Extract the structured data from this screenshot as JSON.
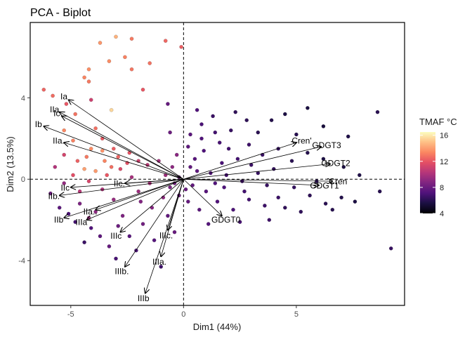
{
  "chart_data": {
    "type": "scatter",
    "title": "PCA - Biplot",
    "xlabel": "Dim1 (44%)",
    "ylabel": "Dim2 (13.5%)",
    "xlim": [
      -6.8,
      9.8
    ],
    "ylim": [
      -6.2,
      7.7
    ],
    "xticks": [
      -5,
      0,
      5
    ],
    "yticks": [
      -4,
      0,
      4
    ],
    "reference_lines": {
      "x": 0,
      "y": 0,
      "style": "dashed"
    },
    "legend": {
      "title": "TMAF °C",
      "placement": "right",
      "min": 4,
      "max": 16.5,
      "ticks": [
        4,
        8,
        12,
        16
      ]
    },
    "vectors": [
      {
        "label": "Ia",
        "x": -5.1,
        "y": 3.9
      },
      {
        "label": "IIa",
        "x": -5.5,
        "y": 3.3
      },
      {
        "label": "Ic",
        "x": -5.4,
        "y": 3.1
      },
      {
        "label": "Ib",
        "x": -6.2,
        "y": 2.6
      },
      {
        "label": "IIa.",
        "x": -5.3,
        "y": 1.8
      },
      {
        "label": "IIc",
        "x": -5.0,
        "y": -0.4
      },
      {
        "label": "IIb.",
        "x": -5.5,
        "y": -0.8
      },
      {
        "label": "IIb",
        "x": -5.3,
        "y": -1.9
      },
      {
        "label": "IIIa",
        "x": -4.3,
        "y": -2.0
      },
      {
        "label": "IIa..",
        "x": -3.9,
        "y": -1.5
      },
      {
        "label": "IIc.",
        "x": -2.6,
        "y": -0.2
      },
      {
        "label": "IIIc",
        "x": -2.8,
        "y": -2.6
      },
      {
        "label": "IIIb.",
        "x": -2.6,
        "y": -4.3
      },
      {
        "label": "IIIa.",
        "x": -1.0,
        "y": -3.8
      },
      {
        "label": "IIIc.",
        "x": -0.7,
        "y": -2.5
      },
      {
        "label": "IIIb",
        "x": -1.7,
        "y": -5.6
      },
      {
        "label": "GDGT0",
        "x": 1.7,
        "y": -1.8
      },
      {
        "label": "Cren'",
        "x": 5.0,
        "y": 1.8
      },
      {
        "label": "GDGT3",
        "x": 6.1,
        "y": 1.6
      },
      {
        "label": "GDGT2",
        "x": 6.5,
        "y": 0.75
      },
      {
        "label": "Cren",
        "x": 6.6,
        "y": -0.1
      },
      {
        "label": "GDGT1",
        "x": 6.0,
        "y": -0.3
      }
    ],
    "points": [
      {
        "x": -3.0,
        "y": 7.0,
        "t": 14.5
      },
      {
        "x": -3.7,
        "y": 6.7,
        "t": 13.8
      },
      {
        "x": -2.3,
        "y": 6.9,
        "t": 13.0
      },
      {
        "x": -0.8,
        "y": 6.8,
        "t": 12.5
      },
      {
        "x": -0.1,
        "y": 6.5,
        "t": 12.2
      },
      {
        "x": -2.6,
        "y": 6.0,
        "t": 13.2
      },
      {
        "x": -3.3,
        "y": 5.8,
        "t": 13.5
      },
      {
        "x": -1.5,
        "y": 5.7,
        "t": 12.8
      },
      {
        "x": -4.2,
        "y": 5.4,
        "t": 13.6
      },
      {
        "x": -2.3,
        "y": 5.4,
        "t": 12.9
      },
      {
        "x": -4.4,
        "y": 5.0,
        "t": 13.3
      },
      {
        "x": -4.2,
        "y": 4.8,
        "t": 13.0
      },
      {
        "x": -1.8,
        "y": 4.4,
        "t": 12.0
      },
      {
        "x": -6.2,
        "y": 4.4,
        "t": 12.4
      },
      {
        "x": -5.8,
        "y": 4.1,
        "t": 12.6
      },
      {
        "x": -3.2,
        "y": 3.4,
        "t": 15.5
      },
      {
        "x": -4.1,
        "y": 3.9,
        "t": 11.0
      },
      {
        "x": -5.2,
        "y": 3.7,
        "t": 12.0
      },
      {
        "x": -4.8,
        "y": 3.2,
        "t": 12.8
      },
      {
        "x": -5.3,
        "y": 2.4,
        "t": 13.4
      },
      {
        "x": -3.9,
        "y": 2.5,
        "t": 12.7
      },
      {
        "x": -3.6,
        "y": 2.0,
        "t": 12.1
      },
      {
        "x": -4.9,
        "y": 1.9,
        "t": 13.2
      },
      {
        "x": -4.1,
        "y": 1.5,
        "t": 13.5
      },
      {
        "x": -3.6,
        "y": 1.4,
        "t": 13.7
      },
      {
        "x": -4.3,
        "y": 1.1,
        "t": 13.0
      },
      {
        "x": -3.5,
        "y": 0.9,
        "t": 13.3
      },
      {
        "x": -4.4,
        "y": 0.5,
        "t": 14.0
      },
      {
        "x": -3.9,
        "y": 0.4,
        "t": 13.9
      },
      {
        "x": -2.9,
        "y": 1.1,
        "t": 12.4
      },
      {
        "x": -3.2,
        "y": 0.6,
        "t": 12.7
      },
      {
        "x": -2.5,
        "y": 0.8,
        "t": 11.8
      },
      {
        "x": -4.7,
        "y": 0.9,
        "t": 12.3
      },
      {
        "x": -4.9,
        "y": 0.2,
        "t": 11.7
      },
      {
        "x": -5.3,
        "y": 1.2,
        "t": 11.2
      },
      {
        "x": -4.2,
        "y": -0.1,
        "t": 11.3
      },
      {
        "x": -3.4,
        "y": 0.2,
        "t": 12.0
      },
      {
        "x": -2.8,
        "y": 0.5,
        "t": 11.5
      },
      {
        "x": -3.1,
        "y": 1.5,
        "t": 12.2
      },
      {
        "x": -2.4,
        "y": 1.3,
        "t": 11.9
      },
      {
        "x": -2.0,
        "y": 0.9,
        "t": 11.0
      },
      {
        "x": -1.6,
        "y": 0.7,
        "t": 10.5
      },
      {
        "x": -5.9,
        "y": -0.7,
        "t": 8.0
      },
      {
        "x": -5.5,
        "y": -1.4,
        "t": 7.5
      },
      {
        "x": -5.1,
        "y": -1.7,
        "t": 7.0
      },
      {
        "x": -4.6,
        "y": -1.2,
        "t": 8.5
      },
      {
        "x": -4.8,
        "y": -2.1,
        "t": 6.8
      },
      {
        "x": -4.1,
        "y": -2.4,
        "t": 7.2
      },
      {
        "x": -3.7,
        "y": -2.8,
        "t": 7.6
      },
      {
        "x": -4.4,
        "y": -3.1,
        "t": 6.5
      },
      {
        "x": -3.3,
        "y": -3.3,
        "t": 7.8
      },
      {
        "x": -3.9,
        "y": -1.6,
        "t": 9.0
      },
      {
        "x": -3.1,
        "y": -1.0,
        "t": 9.3
      },
      {
        "x": -2.7,
        "y": -1.8,
        "t": 8.6
      },
      {
        "x": -2.4,
        "y": -2.8,
        "t": 7.4
      },
      {
        "x": -3.0,
        "y": -3.9,
        "t": 6.9
      },
      {
        "x": -2.1,
        "y": -3.5,
        "t": 7.1
      },
      {
        "x": -1.8,
        "y": -2.2,
        "t": 8.2
      },
      {
        "x": -1.3,
        "y": -3.0,
        "t": 7.3
      },
      {
        "x": -1.0,
        "y": -4.3,
        "t": 6.6
      },
      {
        "x": -0.4,
        "y": -2.6,
        "t": 7.9
      },
      {
        "x": -1.4,
        "y": -1.4,
        "t": 8.8
      },
      {
        "x": -0.9,
        "y": -0.9,
        "t": 9.1
      },
      {
        "x": -2.0,
        "y": -0.6,
        "t": 9.5
      },
      {
        "x": -1.5,
        "y": -0.2,
        "t": 10.0
      },
      {
        "x": -0.8,
        "y": 0.2,
        "t": 9.6
      },
      {
        "x": -0.5,
        "y": 0.6,
        "t": 9.0
      },
      {
        "x": -1.1,
        "y": 0.9,
        "t": 9.7
      },
      {
        "x": -0.3,
        "y": 1.2,
        "t": 8.9
      },
      {
        "x": -0.6,
        "y": -0.4,
        "t": 8.4
      },
      {
        "x": -0.2,
        "y": -0.8,
        "t": 8.1
      },
      {
        "x": -0.7,
        "y": -1.8,
        "t": 7.7
      },
      {
        "x": -1.9,
        "y": -1.1,
        "t": 8.7
      },
      {
        "x": -2.3,
        "y": 0.1,
        "t": 9.8
      },
      {
        "x": -5.3,
        "y": -0.2,
        "t": 9.2
      },
      {
        "x": -5.7,
        "y": 0.6,
        "t": 10.2
      },
      {
        "x": -4.6,
        "y": -0.6,
        "t": 10.4
      },
      {
        "x": -3.6,
        "y": -0.5,
        "t": 10.1
      },
      {
        "x": -2.9,
        "y": -2.3,
        "t": 8.0
      },
      {
        "x": -4.2,
        "y": -1.9,
        "t": 9.4
      },
      {
        "x": 0.3,
        "y": 2.2,
        "t": 7.5
      },
      {
        "x": 0.8,
        "y": 2.7,
        "t": 7.0
      },
      {
        "x": 1.3,
        "y": 3.1,
        "t": 6.5
      },
      {
        "x": 0.6,
        "y": 3.4,
        "t": 7.2
      },
      {
        "x": -0.6,
        "y": 2.3,
        "t": 8.0
      },
      {
        "x": -0.7,
        "y": 3.7,
        "t": 7.8
      },
      {
        "x": 0.2,
        "y": 1.6,
        "t": 7.6
      },
      {
        "x": 0.9,
        "y": 1.4,
        "t": 7.1
      },
      {
        "x": 1.6,
        "y": 1.8,
        "t": 6.9
      },
      {
        "x": 2.1,
        "y": 2.4,
        "t": 6.4
      },
      {
        "x": 2.8,
        "y": 2.9,
        "t": 6.1
      },
      {
        "x": 2.3,
        "y": 3.3,
        "t": 6.2
      },
      {
        "x": 3.3,
        "y": 2.3,
        "t": 6.0
      },
      {
        "x": 3.9,
        "y": 2.9,
        "t": 5.8
      },
      {
        "x": 4.5,
        "y": 3.2,
        "t": 5.6
      },
      {
        "x": 5.5,
        "y": 3.5,
        "t": 5.5
      },
      {
        "x": 8.6,
        "y": 3.3,
        "t": 6.0
      },
      {
        "x": 7.3,
        "y": 2.1,
        "t": 5.7
      },
      {
        "x": 6.2,
        "y": 2.6,
        "t": 5.4
      },
      {
        "x": 5.0,
        "y": 2.2,
        "t": 5.9
      },
      {
        "x": 4.2,
        "y": 1.5,
        "t": 6.3
      },
      {
        "x": 3.5,
        "y": 1.2,
        "t": 6.5
      },
      {
        "x": 2.9,
        "y": 1.7,
        "t": 6.6
      },
      {
        "x": 2.4,
        "y": 1.0,
        "t": 6.8
      },
      {
        "x": 1.7,
        "y": 0.8,
        "t": 7.0
      },
      {
        "x": 1.2,
        "y": 0.3,
        "t": 7.3
      },
      {
        "x": 0.6,
        "y": 0.4,
        "t": 7.6
      },
      {
        "x": 0.4,
        "y": -0.3,
        "t": 7.7
      },
      {
        "x": 1.0,
        "y": -0.6,
        "t": 7.4
      },
      {
        "x": 1.8,
        "y": -0.4,
        "t": 7.1
      },
      {
        "x": 2.6,
        "y": -0.1,
        "t": 6.7
      },
      {
        "x": 3.3,
        "y": 0.3,
        "t": 6.4
      },
      {
        "x": 4.0,
        "y": 0.5,
        "t": 6.2
      },
      {
        "x": 4.8,
        "y": 0.9,
        "t": 6.0
      },
      {
        "x": 5.5,
        "y": 1.3,
        "t": 5.8
      },
      {
        "x": 6.2,
        "y": 1.0,
        "t": 5.6
      },
      {
        "x": 7.1,
        "y": 0.6,
        "t": 5.5
      },
      {
        "x": 7.8,
        "y": 0.2,
        "t": 5.7
      },
      {
        "x": 8.7,
        "y": -0.6,
        "t": 5.9
      },
      {
        "x": 7.0,
        "y": -0.9,
        "t": 5.8
      },
      {
        "x": 6.3,
        "y": -1.2,
        "t": 6.0
      },
      {
        "x": 5.6,
        "y": -0.8,
        "t": 6.1
      },
      {
        "x": 4.9,
        "y": -0.4,
        "t": 6.3
      },
      {
        "x": 4.2,
        "y": -0.9,
        "t": 6.5
      },
      {
        "x": 3.6,
        "y": -1.3,
        "t": 6.6
      },
      {
        "x": 2.9,
        "y": -1.0,
        "t": 6.8
      },
      {
        "x": 2.2,
        "y": -1.5,
        "t": 7.0
      },
      {
        "x": 1.5,
        "y": -1.1,
        "t": 7.2
      },
      {
        "x": 0.7,
        "y": -1.5,
        "t": 7.5
      },
      {
        "x": 0.2,
        "y": -1.1,
        "t": 7.8
      },
      {
        "x": 1.1,
        "y": -2.2,
        "t": 7.3
      },
      {
        "x": 2.5,
        "y": -2.1,
        "t": 6.9
      },
      {
        "x": 3.8,
        "y": -2.0,
        "t": 6.6
      },
      {
        "x": 5.2,
        "y": -1.6,
        "t": 6.2
      },
      {
        "x": 6.6,
        "y": -1.5,
        "t": 5.9
      },
      {
        "x": 9.2,
        "y": -3.4,
        "t": 6.4
      },
      {
        "x": 7.6,
        "y": -1.1,
        "t": 5.6
      },
      {
        "x": 5.9,
        "y": -0.1,
        "t": 5.9
      },
      {
        "x": 3.0,
        "y": 0.7,
        "t": 6.5
      },
      {
        "x": 1.9,
        "y": 0.2,
        "t": 6.9
      },
      {
        "x": 0.5,
        "y": 1.0,
        "t": 7.4
      },
      {
        "x": -0.2,
        "y": 0.1,
        "t": 8.0
      },
      {
        "x": 0.1,
        "y": -0.5,
        "t": 7.9
      },
      {
        "x": 0.8,
        "y": 2.0,
        "t": 7.2
      },
      {
        "x": 1.4,
        "y": 2.3,
        "t": 6.8
      },
      {
        "x": 2.0,
        "y": 1.5,
        "t": 6.7
      },
      {
        "x": 3.7,
        "y": -0.3,
        "t": 6.4
      },
      {
        "x": 4.5,
        "y": -1.4,
        "t": 6.2
      },
      {
        "x": 2.7,
        "y": -0.6,
        "t": 6.8
      },
      {
        "x": 1.4,
        "y": -0.2,
        "t": 7.2
      },
      {
        "x": 0.3,
        "y": 0.6,
        "t": 7.7
      },
      {
        "x": -0.4,
        "y": -0.2,
        "t": 8.3
      }
    ]
  }
}
